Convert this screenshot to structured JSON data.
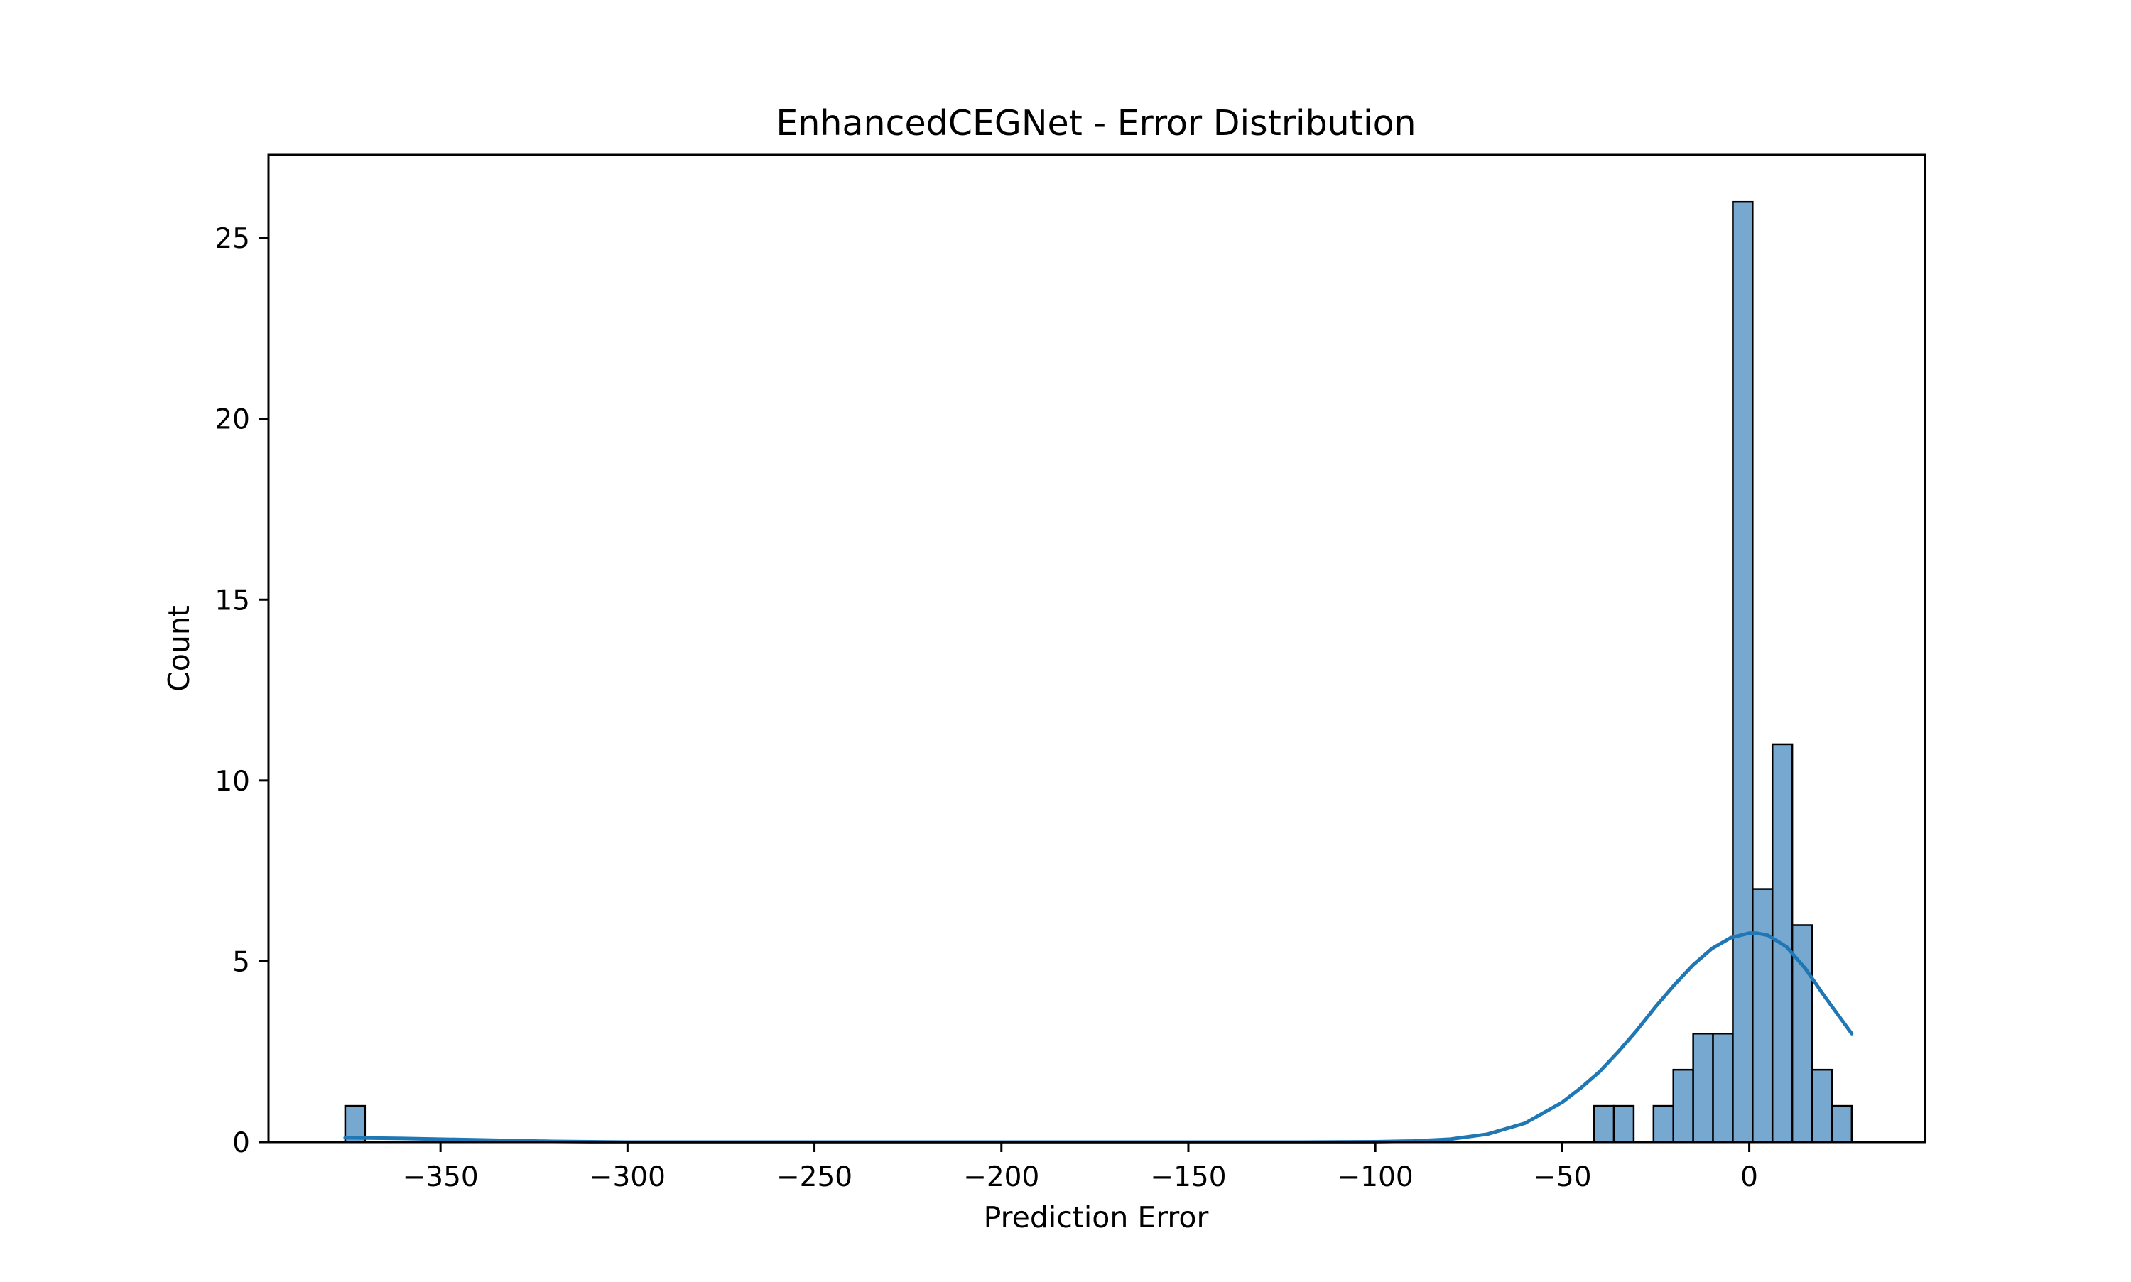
{
  "chart_data": {
    "type": "bar",
    "title": "EnhancedCEGNet - Error Distribution",
    "xlabel": "Prediction Error",
    "ylabel": "Count",
    "xlim": [
      -396,
      47
    ],
    "ylim": [
      0,
      27.3
    ],
    "xticks": [
      -350,
      -300,
      -250,
      -200,
      -150,
      -100,
      -50,
      0
    ],
    "xtick_labels": [
      "−350",
      "−300",
      "−250",
      "−200",
      "−150",
      "−100",
      "−50",
      "0"
    ],
    "yticks": [
      0,
      5,
      10,
      15,
      20,
      25
    ],
    "ytick_labels": [
      "0",
      "5",
      "10",
      "15",
      "20",
      "25"
    ],
    "grid": false,
    "legend": false,
    "bar_color": "#77a8d0",
    "bar_edge_color": "#000000",
    "kde_color": "#1f77b4",
    "bins": [
      {
        "x0": -375.5,
        "x1": -370.2,
        "count": 1
      },
      {
        "x0": -41.5,
        "x1": -36.2,
        "count": 1
      },
      {
        "x0": -36.2,
        "x1": -30.9,
        "count": 1
      },
      {
        "x0": -25.6,
        "x1": -20.3,
        "count": 1
      },
      {
        "x0": -20.3,
        "x1": -15.0,
        "count": 2
      },
      {
        "x0": -15.0,
        "x1": -9.7,
        "count": 3
      },
      {
        "x0": -9.7,
        "x1": -4.4,
        "count": 3
      },
      {
        "x0": -4.4,
        "x1": 0.9,
        "count": 26
      },
      {
        "x0": 0.9,
        "x1": 6.2,
        "count": 7
      },
      {
        "x0": 6.2,
        "x1": 11.5,
        "count": 11
      },
      {
        "x0": 11.5,
        "x1": 16.8,
        "count": 6
      },
      {
        "x0": 16.8,
        "x1": 22.1,
        "count": 2
      },
      {
        "x0": 22.1,
        "x1": 27.4,
        "count": 1
      }
    ],
    "kde": {
      "x": [
        -375.5,
        -360,
        -340,
        -320,
        -300,
        -200,
        -120,
        -100,
        -90,
        -80,
        -70,
        -60,
        -50,
        -45,
        -40,
        -35,
        -30,
        -25,
        -20,
        -15,
        -10,
        -5,
        0,
        2,
        5,
        10,
        15,
        20,
        27.4
      ],
      "y": [
        0.12,
        0.1,
        0.06,
        0.02,
        0.0,
        0.0,
        0.0,
        0.01,
        0.03,
        0.08,
        0.22,
        0.52,
        1.1,
        1.5,
        1.95,
        2.5,
        3.1,
        3.75,
        4.35,
        4.9,
        5.35,
        5.65,
        5.78,
        5.78,
        5.72,
        5.4,
        4.8,
        4.05,
        3.0
      ]
    }
  }
}
